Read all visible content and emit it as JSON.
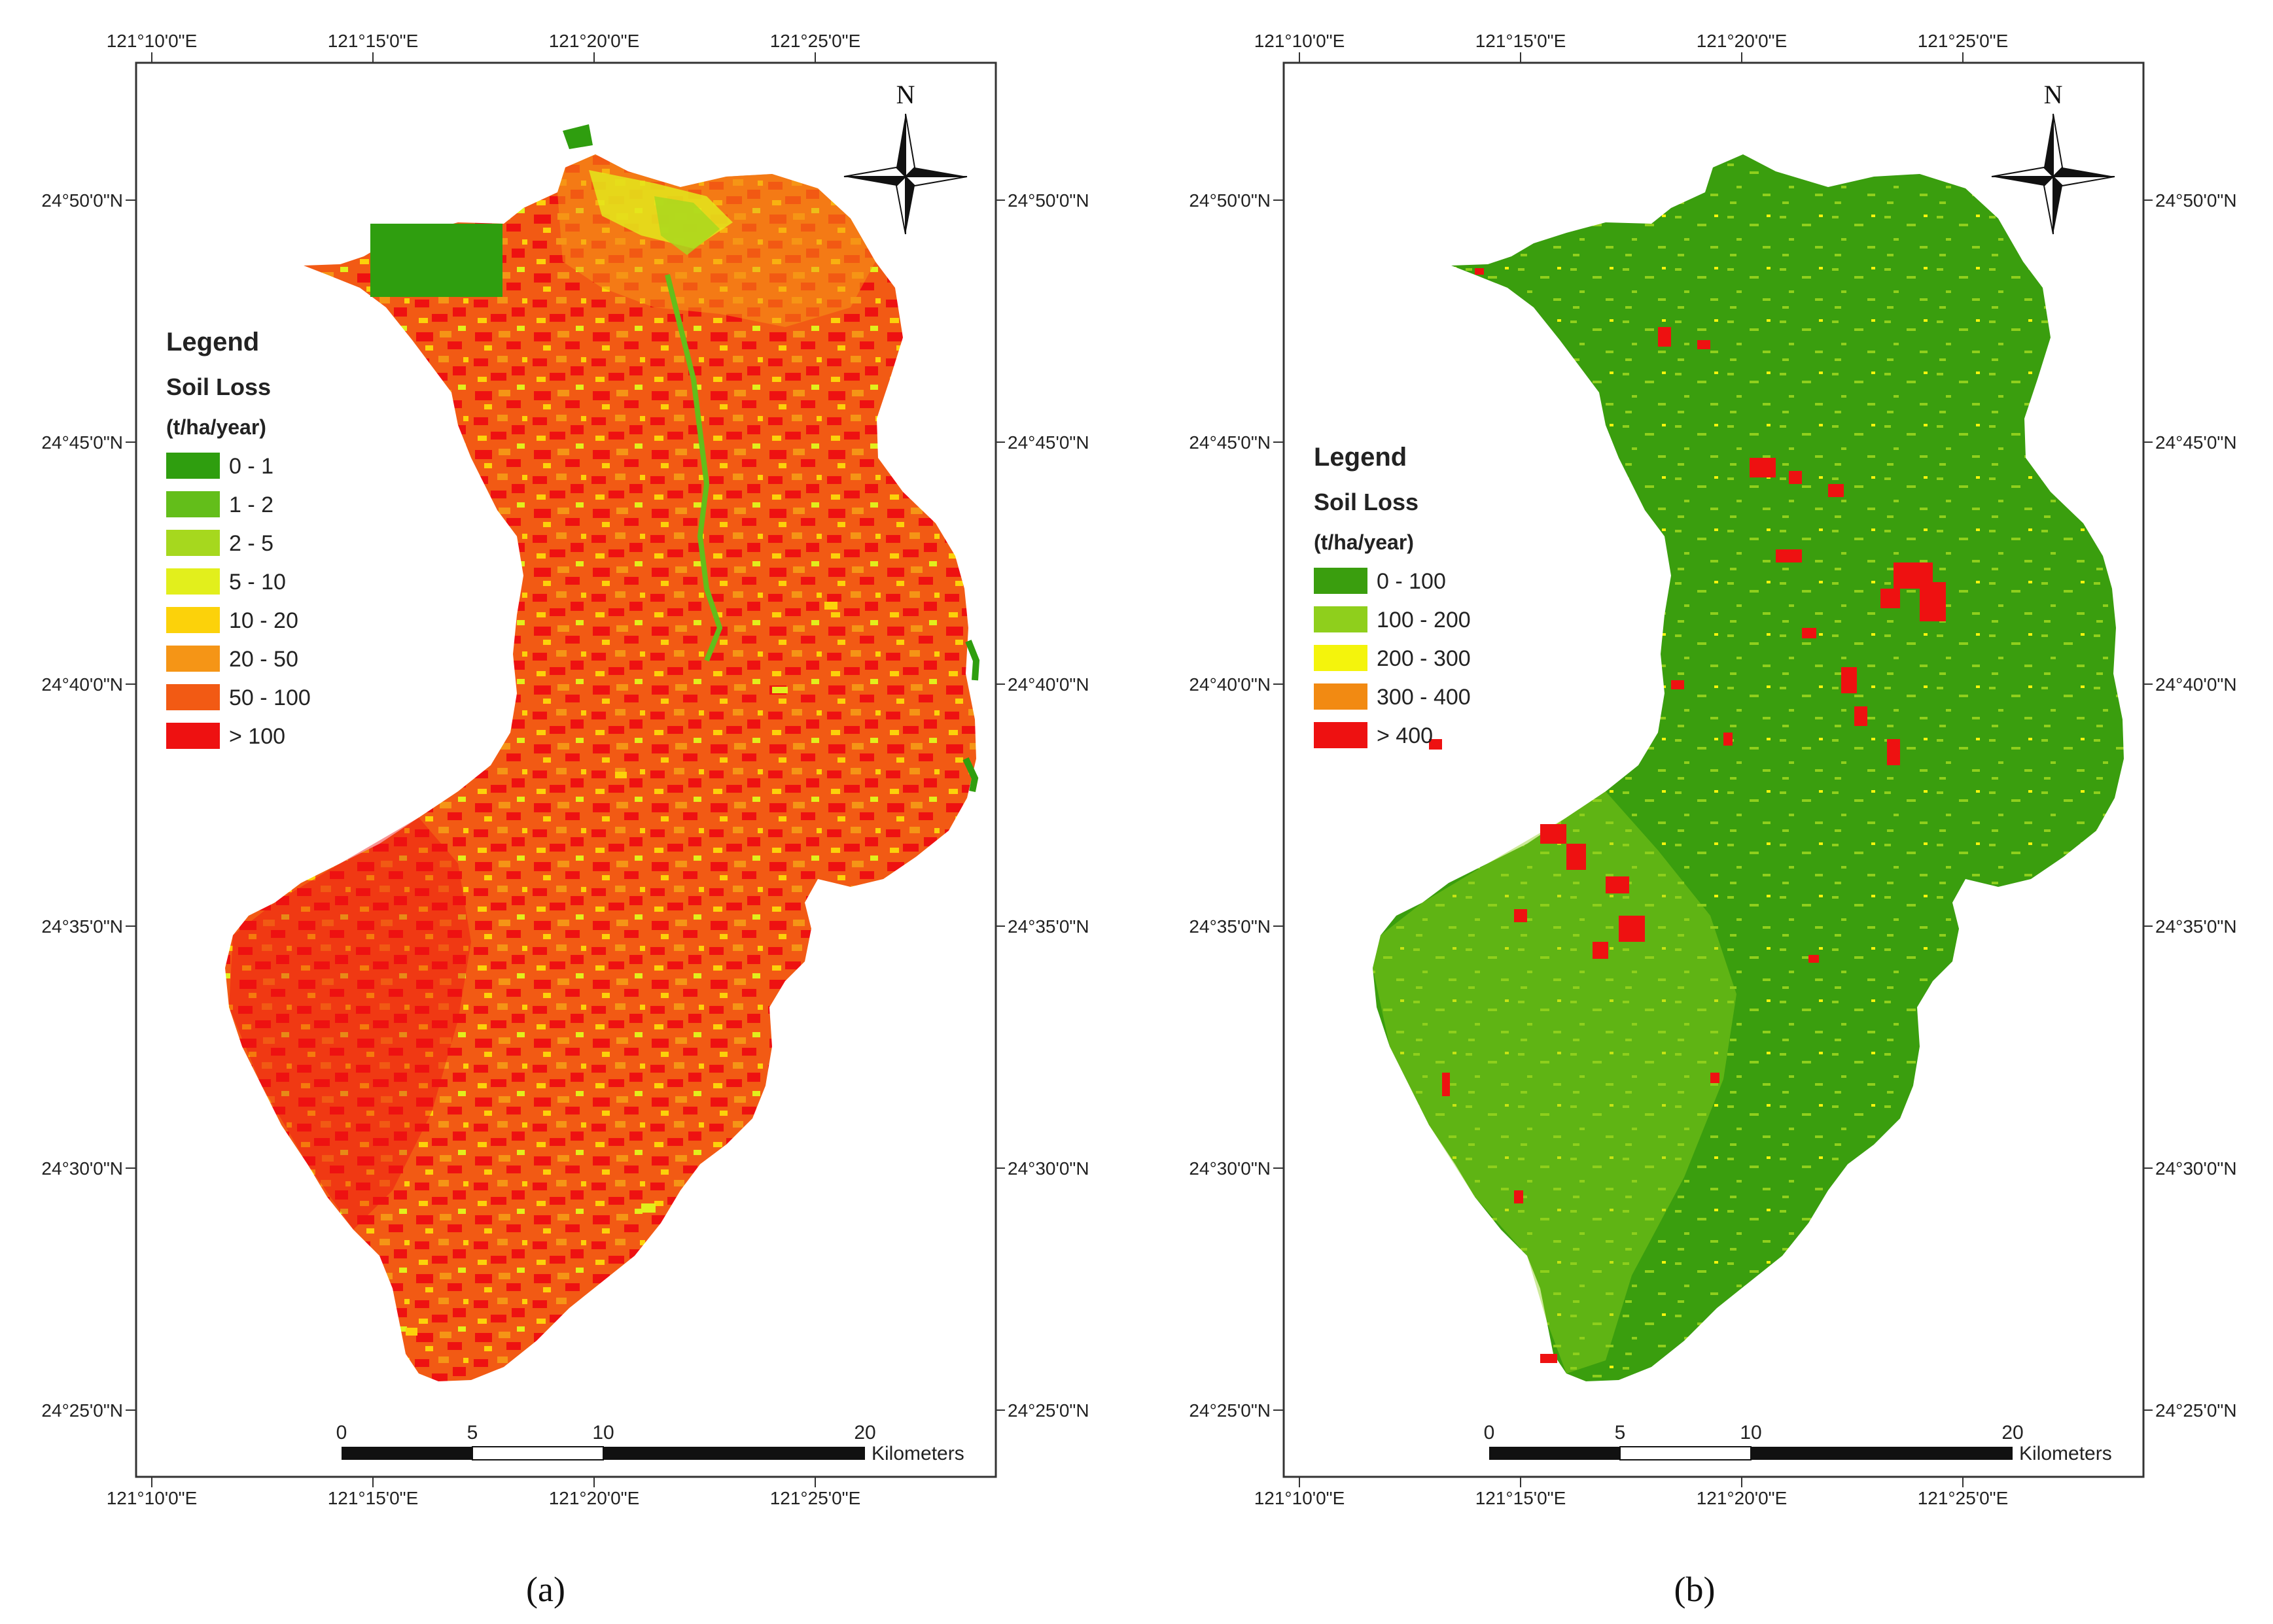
{
  "panels": [
    {
      "id": "a",
      "caption": "(a)",
      "legend": {
        "title": "Legend",
        "subtitle": "Soil Loss",
        "unit": "(t/ha/year)",
        "classes": [
          {
            "label": "0 - 1",
            "color": "#2f9e0f"
          },
          {
            "label": "1 - 2",
            "color": "#63be1a"
          },
          {
            "label": "2 - 5",
            "color": "#a6d81e"
          },
          {
            "label": "5 - 10",
            "color": "#e2ef1c"
          },
          {
            "label": "10 - 20",
            "color": "#fcd20a"
          },
          {
            "label": "20 - 50",
            "color": "#f59516"
          },
          {
            "label": "50 - 100",
            "color": "#f25a14"
          },
          {
            "label": "> 100",
            "color": "#ee1111"
          }
        ]
      },
      "top_ticks": [
        "121°10'0\"E",
        "121°15'0\"E",
        "121°20'0\"E",
        "121°25'0\"E"
      ],
      "bottom_ticks": [
        "121°10'0\"E",
        "121°15'0\"E",
        "121°20'0\"E",
        "121°25'0\"E"
      ],
      "left_ticks": [
        "24°50'0\"N",
        "24°45'0\"N",
        "24°40'0\"N",
        "24°35'0\"N",
        "24°30'0\"N",
        "24°25'0\"N"
      ],
      "right_ticks": [
        "24°50'0\"N",
        "24°45'0\"N",
        "24°40'0\"N",
        "24°35'0\"N",
        "24°30'0\"N",
        "24°25'0\"N"
      ],
      "scale": {
        "labels": [
          "0",
          "5",
          "10",
          "20"
        ],
        "unit": "Kilometers"
      },
      "north_label": "N"
    },
    {
      "id": "b",
      "caption": "(b)",
      "legend": {
        "title": "Legend",
        "subtitle": "Soil Loss",
        "unit": "(t/ha/year)",
        "classes": [
          {
            "label": "0 - 100",
            "color": "#3a9e0e"
          },
          {
            "label": "100 - 200",
            "color": "#8fcf1c"
          },
          {
            "label": "200 - 300",
            "color": "#f4f40c"
          },
          {
            "label": "300 - 400",
            "color": "#f28a12"
          },
          {
            "label": "> 400",
            "color": "#ee1111"
          }
        ]
      },
      "top_ticks": [
        "121°10'0\"E",
        "121°15'0\"E",
        "121°20'0\"E",
        "121°25'0\"E"
      ],
      "bottom_ticks": [
        "121°10'0\"E",
        "121°15'0\"E",
        "121°20'0\"E",
        "121°25'0\"E"
      ],
      "left_ticks": [
        "24°50'0\"N",
        "24°45'0\"N",
        "24°40'0\"N",
        "24°35'0\"N",
        "24°30'0\"N",
        "24°25'0\"N"
      ],
      "right_ticks": [
        "24°50'0\"N",
        "24°45'0\"N",
        "24°40'0\"N",
        "24°35'0\"N",
        "24°30'0\"N",
        "24°25'0\"N"
      ],
      "scale": {
        "labels": [
          "0",
          "5",
          "10",
          "20"
        ],
        "unit": "Kilometers"
      },
      "north_label": "N"
    }
  ]
}
